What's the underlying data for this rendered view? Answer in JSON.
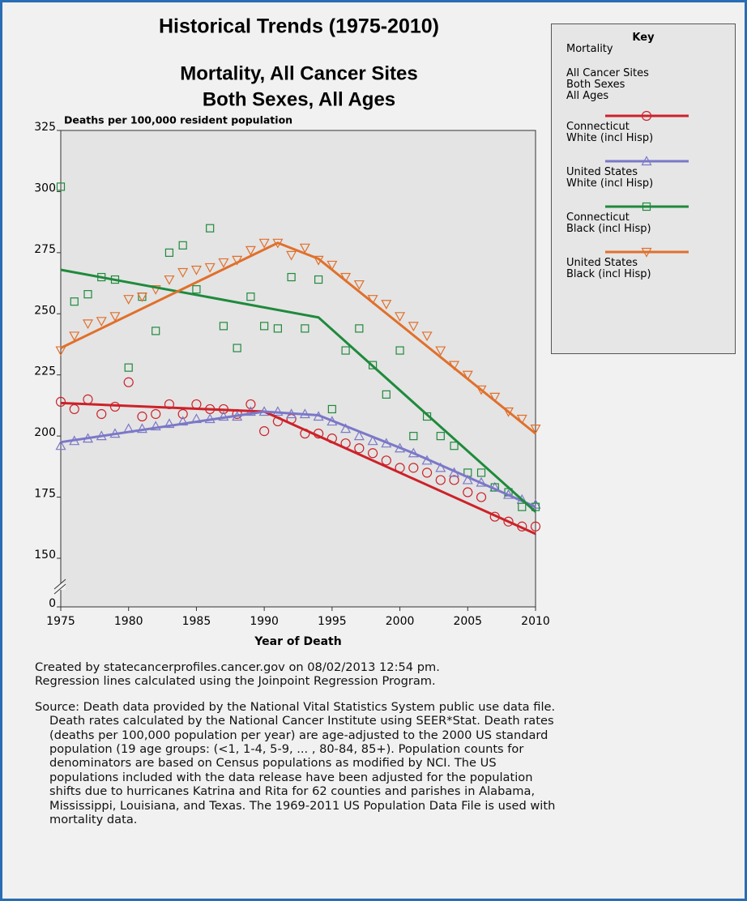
{
  "chart_data": {
    "type": "line",
    "title": "Historical Trends (1975-2010)",
    "subtitle": [
      "Mortality, All Cancer Sites",
      "Both Sexes, All Ages"
    ],
    "y_label": "Deaths per 100,000 resident population",
    "x_label": "Year of Death",
    "xlim": [
      1975,
      2010
    ],
    "xticks": [
      1975,
      1980,
      1985,
      1990,
      1995,
      2000,
      2005,
      2010
    ],
    "ylim": [
      0,
      325
    ],
    "yticks": [
      0,
      150,
      175,
      200,
      225,
      250,
      275,
      300,
      325
    ],
    "y_axis_break": true,
    "x": [
      1975,
      1976,
      1977,
      1978,
      1979,
      1980,
      1981,
      1982,
      1983,
      1984,
      1985,
      1986,
      1987,
      1988,
      1989,
      1990,
      1991,
      1992,
      1993,
      1994,
      1995,
      1996,
      1997,
      1998,
      1999,
      2000,
      2001,
      2002,
      2003,
      2004,
      2005,
      2006,
      2007,
      2008,
      2009,
      2010
    ],
    "legend_title": "Key",
    "legend_notes": [
      "Mortality",
      "All Cancer Sites\nBoth Sexes\nAll Ages"
    ],
    "series": [
      {
        "name": "Connecticut\nWhite (incl Hisp)",
        "color": "#cc2229",
        "marker": "circle",
        "values": [
          214,
          211,
          215,
          209,
          212,
          222,
          208,
          209,
          213,
          209,
          213,
          211,
          211,
          209,
          213,
          202,
          206,
          207,
          201,
          201,
          199,
          197,
          195,
          193,
          190,
          187,
          187,
          185,
          182,
          182,
          177,
          175,
          167,
          165,
          163,
          163
        ],
        "trend": {
          "x": [
            1975,
            1990,
            2010
          ],
          "values": [
            213.5,
            210,
            160
          ]
        }
      },
      {
        "name": "United States\nWhite (incl Hisp)",
        "color": "#7b78c8",
        "marker": "triangle",
        "values": [
          196,
          198,
          199,
          200,
          201,
          203,
          203,
          204,
          205,
          206,
          207,
          207,
          208,
          208,
          210,
          210,
          210,
          209,
          209,
          208,
          206,
          203,
          200,
          198,
          197,
          195,
          193,
          190,
          187,
          185,
          182,
          181,
          179,
          176,
          174,
          172
        ],
        "trend": {
          "x": [
            1975,
            1990,
            1994,
            2001,
            2010
          ],
          "values": [
            197.5,
            210,
            208.5,
            193,
            171
          ]
        }
      },
      {
        "name": "Connecticut\nBlack (incl Hisp)",
        "color": "#1f8a3c",
        "marker": "square",
        "values": [
          302,
          255,
          258,
          265,
          264,
          228,
          257,
          243,
          275,
          278,
          260,
          285,
          245,
          236,
          257,
          245,
          244,
          265,
          244,
          264,
          211,
          235,
          244,
          229,
          217,
          235,
          200,
          208,
          200,
          196,
          185,
          185,
          179,
          177,
          171,
          171
        ],
        "trend": {
          "x": [
            1975,
            1994,
            2010
          ],
          "values": [
            268,
            248.5,
            169
          ]
        }
      },
      {
        "name": "United States\nBlack (incl Hisp)",
        "color": "#e0702c",
        "marker": "triangle-down",
        "values": [
          235,
          241,
          246,
          247,
          249,
          256,
          257,
          260,
          264,
          267,
          268,
          269,
          271,
          272,
          276,
          279,
          279,
          274,
          277,
          272,
          270,
          265,
          262,
          256,
          254,
          249,
          245,
          241,
          235,
          229,
          225,
          219,
          216,
          210,
          207,
          203
        ],
        "trend": {
          "x": [
            1975,
            1991,
            1994,
            2010
          ],
          "values": [
            236,
            279,
            272.5,
            201
          ]
        }
      }
    ],
    "notes": [
      "Created by statecancerprofiles.cancer.gov on 08/02/2013 12:54 pm.\nRegression lines calculated using the Joinpoint Regression Program.",
      "Source: Death data provided by the National Vital Statistics System public use data file. Death rates calculated by the National Cancer Institute using SEER*Stat. Death rates (deaths per 100,000 population per year) are age-adjusted to the 2000 US standard population (19 age groups: (<1, 1-4, 5-9, ... , 80-84, 85+). Population counts for denominators are based on Census populations as modified by NCI. The US populations included with the data release have been adjusted for the population shifts due to hurricanes Katrina and Rita for 62 counties and parishes in Alabama, Mississippi, Louisiana, and Texas. The 1969-2011 US Population Data File is used with mortality data."
    ]
  }
}
